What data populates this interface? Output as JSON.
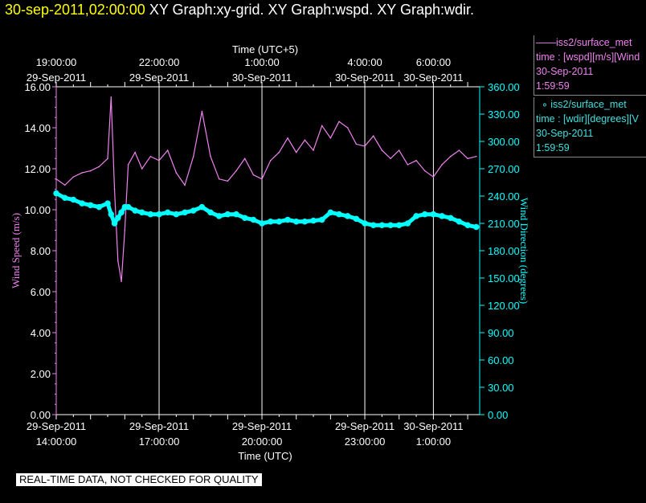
{
  "title": {
    "timestamp": "30-sep-2011,02:00:00",
    "graphs": "XY Graph:xy-grid.  XY Graph:wspd.  XY Graph:wdir."
  },
  "legend": {
    "wspd": {
      "name": "iss2/surface_met",
      "label": "time : [wspd][m/s][Wind",
      "date": "30-Sep-2011",
      "time": "1:59:59"
    },
    "wdir": {
      "name": "iss2/surface_met",
      "label": "time : [wdir][degrees][V",
      "date": "30-Sep-2011",
      "time": "1:59:59"
    }
  },
  "disclaimer": "REAL-TIME DATA, NOT CHECKED FOR QUALITY",
  "chart_data": {
    "type": "line",
    "top_axis_title": "Time (UTC+5)",
    "top_ticks": [
      {
        "x": 0,
        "time": "19:00:00",
        "date": "29-Sep-2011"
      },
      {
        "x": 3,
        "time": "22:00:00",
        "date": "29-Sep-2011"
      },
      {
        "x": 6,
        "time": "1:00:00",
        "date": "30-Sep-2011"
      },
      {
        "x": 9,
        "time": "4:00:00",
        "date": "30-Sep-2011"
      },
      {
        "x": 11,
        "time": "6:00:00",
        "date": "30-Sep-2011"
      }
    ],
    "bottom_axis_title": "Time (UTC)",
    "bottom_ticks": [
      {
        "x": 0,
        "date": "29-Sep-2011",
        "time": "14:00:00"
      },
      {
        "x": 3,
        "date": "29-Sep-2011",
        "time": "17:00:00"
      },
      {
        "x": 6,
        "date": "29-Sep-2011",
        "time": "20:00:00"
      },
      {
        "x": 9,
        "date": "29-Sep-2011",
        "time": "23:00:00"
      },
      {
        "x": 11,
        "date": "30-Sep-2011",
        "time": "1:00:00"
      }
    ],
    "x_range_hours": [
      0,
      12.35
    ],
    "x_unit": "hours after 29-Sep-2011 14:00:00 UTC",
    "left_axis": {
      "label": "Wind Speed (m/s)",
      "range": [
        0,
        16
      ],
      "ticks": [
        "0.00",
        "2.00",
        "4.00",
        "6.00",
        "8.00",
        "10.00",
        "12.00",
        "14.00",
        "16.00"
      ],
      "color": "#ee82ee"
    },
    "right_axis": {
      "label": "Wind Direction (degrees)",
      "range": [
        0,
        360
      ],
      "ticks": [
        "0.00",
        "30.00",
        "60.00",
        "90.00",
        "120.00",
        "150.00",
        "180.00",
        "210.00",
        "240.00",
        "270.00",
        "300.00",
        "330.00",
        "360.00"
      ],
      "color": "#00ffff"
    },
    "grid": true,
    "series": [
      {
        "name": "iss2/surface_met wspd",
        "axis": "left",
        "style": "line",
        "x": [
          0,
          0.25,
          0.5,
          0.75,
          1.0,
          1.25,
          1.5,
          1.6,
          1.7,
          1.8,
          1.9,
          2.0,
          2.1,
          2.3,
          2.5,
          2.75,
          3.0,
          3.25,
          3.5,
          3.75,
          4.0,
          4.25,
          4.5,
          4.75,
          5.0,
          5.25,
          5.5,
          5.75,
          6.0,
          6.25,
          6.5,
          6.75,
          7.0,
          7.25,
          7.5,
          7.75,
          8.0,
          8.25,
          8.5,
          8.75,
          9.0,
          9.25,
          9.5,
          9.75,
          10.0,
          10.25,
          10.5,
          10.75,
          11.0,
          11.25,
          11.5,
          11.75,
          12.0,
          12.25
        ],
        "y": [
          11.5,
          11.2,
          11.6,
          11.8,
          11.9,
          12.1,
          12.5,
          15.5,
          11.0,
          7.5,
          6.5,
          9.0,
          12.2,
          12.8,
          12.0,
          12.6,
          12.4,
          12.9,
          11.8,
          11.2,
          12.6,
          14.8,
          12.6,
          11.5,
          11.4,
          11.9,
          12.5,
          11.7,
          11.5,
          12.4,
          12.8,
          13.5,
          12.8,
          13.4,
          12.9,
          14.1,
          13.5,
          14.3,
          14.0,
          13.2,
          13.1,
          13.6,
          12.9,
          12.5,
          12.9,
          12.2,
          12.4,
          11.9,
          11.6,
          12.2,
          12.6,
          12.9,
          12.5,
          12.6
        ]
      },
      {
        "name": "iss2/surface_met wdir",
        "axis": "right",
        "style": "markers",
        "x": [
          0,
          0.25,
          0.5,
          0.75,
          1.0,
          1.25,
          1.5,
          1.6,
          1.7,
          1.8,
          1.9,
          2.0,
          2.1,
          2.3,
          2.5,
          2.75,
          3.0,
          3.25,
          3.5,
          3.75,
          4.0,
          4.25,
          4.5,
          4.75,
          5.0,
          5.25,
          5.5,
          5.75,
          6.0,
          6.25,
          6.5,
          6.75,
          7.0,
          7.25,
          7.5,
          7.75,
          8.0,
          8.25,
          8.5,
          8.75,
          9.0,
          9.25,
          9.5,
          9.75,
          10.0,
          10.25,
          10.5,
          10.75,
          11.0,
          11.25,
          11.5,
          11.75,
          12.0,
          12.25
        ],
        "y": [
          243,
          238,
          236,
          232,
          230,
          228,
          232,
          220,
          210,
          216,
          222,
          228,
          228,
          224,
          222,
          220,
          220,
          222,
          220,
          222,
          224,
          228,
          222,
          218,
          220,
          220,
          216,
          214,
          210,
          212,
          212,
          214,
          212,
          212,
          213,
          214,
          222,
          220,
          218,
          215,
          210,
          208,
          208,
          208,
          208,
          210,
          218,
          220,
          220,
          218,
          216,
          212,
          208,
          206
        ]
      }
    ]
  }
}
